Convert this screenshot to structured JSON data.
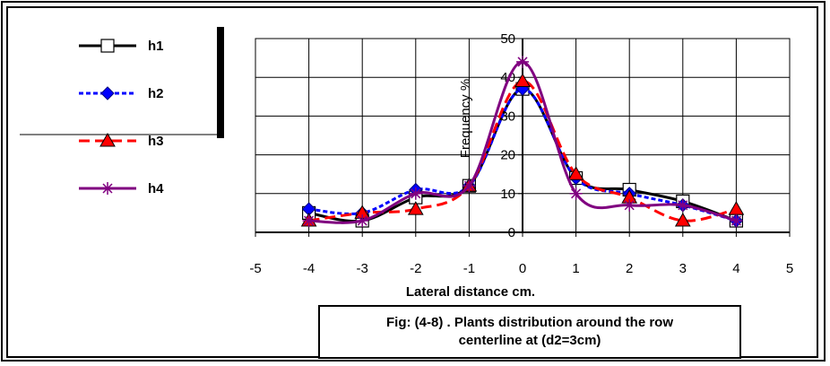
{
  "chart_data": {
    "type": "line",
    "title": "",
    "xlabel": "Lateral distance cm.",
    "ylabel": "Frequency %",
    "xlim": [
      -5,
      5
    ],
    "ylim": [
      0,
      50
    ],
    "xticks": [
      "-5",
      "-4",
      "-3",
      "-2",
      "-1",
      "0",
      "1",
      "2",
      "3",
      "4",
      "5"
    ],
    "yticks": [
      "0",
      "10",
      "20",
      "30",
      "40",
      "50"
    ],
    "grid": true,
    "legend_position": "left",
    "x": [
      -4,
      -3,
      -2,
      -1,
      0,
      1,
      2,
      3,
      4
    ],
    "series": [
      {
        "name": "h1",
        "color": "#000000",
        "dash": "solid",
        "marker": "open-square",
        "values": [
          5,
          3,
          9,
          12,
          37,
          14,
          11,
          8,
          3
        ]
      },
      {
        "name": "h2",
        "color": "#0000ff",
        "dash": "dotted",
        "marker": "diamond",
        "values": [
          6,
          5,
          11,
          12,
          37,
          14,
          10,
          7,
          3
        ]
      },
      {
        "name": "h3",
        "color": "#ff0000",
        "dash": "dashed",
        "marker": "triangle",
        "values": [
          3,
          5,
          6,
          12,
          39,
          15,
          9,
          3,
          6
        ]
      },
      {
        "name": "h4",
        "color": "#800080",
        "dash": "solid",
        "marker": "asterisk",
        "values": [
          3,
          3,
          10,
          12,
          44,
          10,
          7,
          7,
          3
        ]
      }
    ]
  },
  "caption": {
    "line1": "Fig: (4-8) . Plants distribution around the row",
    "line2": "centerline at (d2=3cm)"
  }
}
